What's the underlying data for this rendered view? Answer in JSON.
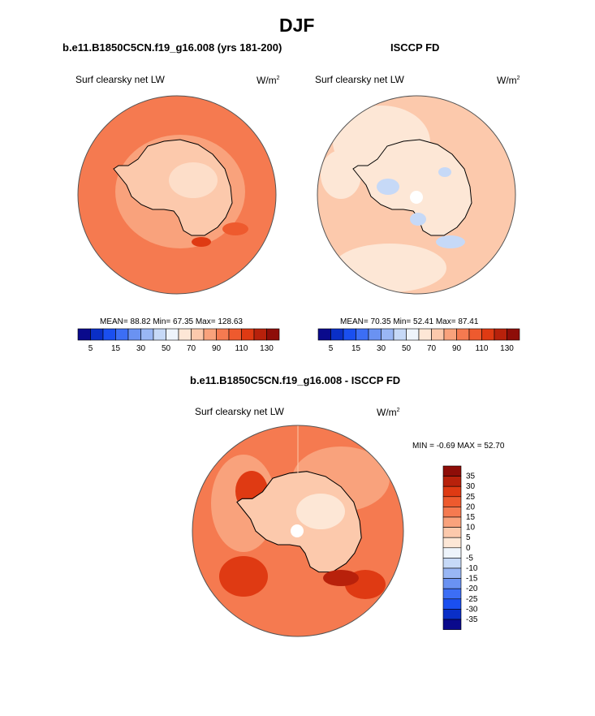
{
  "page": {
    "title": "DJF",
    "top_left_title": "b.e11.B1850C5CN.f19_g16.008 (yrs 181-200)",
    "top_right_title": "ISCCP FD",
    "bottom_title": "b.e11.B1850C5CN.f19_g16.008 - ISCCP FD"
  },
  "panels": {
    "model": {
      "variable": "Surf clearsky net LW",
      "units_base": "W/m",
      "units_exp": "2",
      "stats": "MEAN=  88.82  Min=  67.35  Max= 128.63"
    },
    "obs": {
      "variable": "Surf clearsky net LW",
      "units_base": "W/m",
      "units_exp": "2",
      "stats": "MEAN=  70.35  Min=  52.41  Max=  87.41"
    },
    "diff": {
      "variable": "Surf clearsky net LW",
      "units_base": "W/m",
      "units_exp": "2",
      "stats": "MIN =  -0.69 MAX =  52.70"
    }
  },
  "chart_data": [
    {
      "type": "heatmap",
      "title": "b.e11.B1850C5CN.f19_g16.008 (yrs 181-200)",
      "variable": "Surf clearsky net LW",
      "units": "W/m2",
      "projection": "polar stereographic (south)",
      "stats": {
        "mean": 88.82,
        "min": 67.35,
        "max": 128.63
      },
      "colorbar": {
        "orientation": "horizontal",
        "tick_labels": [
          "5",
          "15",
          "30",
          "50",
          "70",
          "90",
          "110",
          "130"
        ],
        "colors": [
          "#0a0a8c",
          "#0a2fc7",
          "#1a4ff0",
          "#3c6ef5",
          "#6a92f2",
          "#99b7f5",
          "#c6d9f7",
          "#eef4fb",
          "#fde7d6",
          "#fcc9ac",
          "#f9a27c",
          "#f57a50",
          "#ee5a2e",
          "#df3a13",
          "#b8210b",
          "#8e0d08"
        ]
      }
    },
    {
      "type": "heatmap",
      "title": "ISCCP FD",
      "variable": "Surf clearsky net LW",
      "units": "W/m2",
      "projection": "polar stereographic (south)",
      "stats": {
        "mean": 70.35,
        "min": 52.41,
        "max": 87.41
      },
      "colorbar": {
        "orientation": "horizontal",
        "tick_labels": [
          "5",
          "15",
          "30",
          "50",
          "70",
          "90",
          "110",
          "130"
        ],
        "colors": [
          "#0a0a8c",
          "#0a2fc7",
          "#1a4ff0",
          "#3c6ef5",
          "#6a92f2",
          "#99b7f5",
          "#c6d9f7",
          "#eef4fb",
          "#fde7d6",
          "#fcc9ac",
          "#f9a27c",
          "#f57a50",
          "#ee5a2e",
          "#df3a13",
          "#b8210b",
          "#8e0d08"
        ]
      }
    },
    {
      "type": "heatmap",
      "title": "b.e11.B1850C5CN.f19_g16.008 - ISCCP FD",
      "variable": "Surf clearsky net LW",
      "units": "W/m2",
      "projection": "polar stereographic (south)",
      "stats": {
        "min": -0.69,
        "max": 52.7
      },
      "colorbar": {
        "orientation": "vertical",
        "tick_labels": [
          "35",
          "30",
          "25",
          "20",
          "15",
          "10",
          "5",
          "0",
          "-5",
          "-10",
          "-15",
          "-20",
          "-25",
          "-30",
          "-35"
        ],
        "colors": [
          "#8e0d08",
          "#b8210b",
          "#df3a13",
          "#ee5a2e",
          "#f57a50",
          "#f9a27c",
          "#fcc9ac",
          "#fde7d6",
          "#eef4fb",
          "#c6d9f7",
          "#99b7f5",
          "#6a92f2",
          "#3c6ef5",
          "#1a4ff0",
          "#0a2fc7",
          "#0a0a8c"
        ]
      }
    }
  ]
}
